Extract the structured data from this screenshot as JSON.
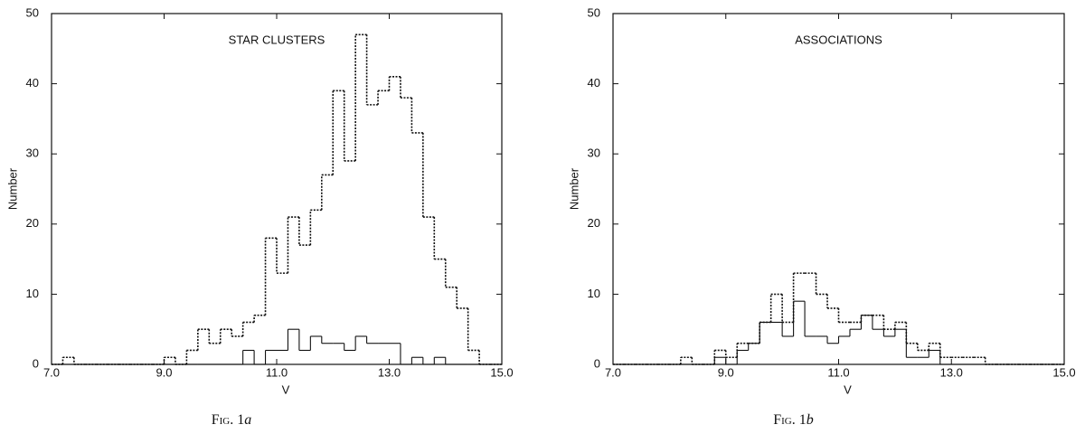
{
  "chart_data": [
    {
      "type": "histogram",
      "title": "STAR CLUSTERS",
      "xlabel": "V",
      "ylabel": "Number",
      "caption": "Fig. 1",
      "caption_panel": "a",
      "bins": [
        7.0,
        7.2,
        7.4,
        7.6,
        7.8,
        8.0,
        8.2,
        8.4,
        8.6,
        8.8,
        9.0,
        9.2,
        9.4,
        9.6,
        9.8,
        10.0,
        10.2,
        10.4,
        10.6,
        10.8,
        11.0,
        11.2,
        11.4,
        11.6,
        11.8,
        12.0,
        12.2,
        12.4,
        12.6,
        12.8,
        13.0,
        13.2,
        13.4,
        13.6,
        13.8,
        14.0,
        14.2,
        14.4,
        14.6,
        14.8,
        15.0
      ],
      "series": [
        {
          "style": "dotted",
          "color": "#111111",
          "values": [
            0,
            1,
            0,
            0,
            0,
            0,
            0,
            0,
            0,
            0,
            1,
            0,
            2,
            5,
            3,
            5,
            4,
            6,
            7,
            18,
            13,
            21,
            17,
            22,
            27,
            39,
            29,
            47,
            37,
            39,
            41,
            38,
            33,
            21,
            15,
            11,
            8,
            2,
            0,
            0
          ]
        },
        {
          "style": "solid",
          "color": "#111111",
          "values": [
            0,
            0,
            0,
            0,
            0,
            0,
            0,
            0,
            0,
            0,
            0,
            0,
            0,
            0,
            0,
            0,
            0,
            2,
            0,
            2,
            2,
            5,
            2,
            4,
            3,
            3,
            2,
            4,
            3,
            3,
            3,
            0,
            1,
            0,
            1,
            0,
            0,
            0,
            0,
            0
          ]
        }
      ],
      "xlim": [
        7.0,
        15.0
      ],
      "ylim": [
        0,
        50
      ],
      "xticks": [
        {
          "value": 7,
          "label": "7.0"
        },
        {
          "value": 9,
          "label": "9.0"
        },
        {
          "value": 11,
          "label": "11.0"
        },
        {
          "value": 13,
          "label": "13.0"
        },
        {
          "value": 15,
          "label": "15.0"
        }
      ],
      "yticks": [
        0,
        10,
        20,
        30,
        40,
        50
      ]
    },
    {
      "type": "histogram",
      "title": "ASSOCIATIONS",
      "xlabel": "V",
      "ylabel": "Number",
      "caption": "Fig. 1",
      "caption_panel": "b",
      "bins": [
        7.0,
        7.2,
        7.4,
        7.6,
        7.8,
        8.0,
        8.2,
        8.4,
        8.6,
        8.8,
        9.0,
        9.2,
        9.4,
        9.6,
        9.8,
        10.0,
        10.2,
        10.4,
        10.6,
        10.8,
        11.0,
        11.2,
        11.4,
        11.6,
        11.8,
        12.0,
        12.2,
        12.4,
        12.6,
        12.8,
        13.0,
        13.2,
        13.4,
        13.6,
        13.8,
        14.0,
        14.2,
        14.4,
        14.6,
        14.8,
        15.0
      ],
      "series": [
        {
          "style": "dotted",
          "color": "#111111",
          "values": [
            0,
            0,
            0,
            0,
            0,
            0,
            1,
            0,
            0,
            2,
            1,
            3,
            3,
            6,
            10,
            6,
            13,
            13,
            10,
            8,
            6,
            6,
            7,
            7,
            5,
            6,
            3,
            2,
            3,
            1,
            1,
            1,
            1,
            0,
            0,
            0,
            0,
            0,
            0,
            0
          ]
        },
        {
          "style": "solid",
          "color": "#111111",
          "values": [
            0,
            0,
            0,
            0,
            0,
            0,
            0,
            0,
            0,
            1,
            0,
            2,
            3,
            6,
            6,
            4,
            9,
            4,
            4,
            3,
            4,
            5,
            7,
            5,
            4,
            5,
            1,
            1,
            2,
            0,
            0,
            0,
            0,
            0,
            0,
            0,
            0,
            0,
            0,
            0
          ]
        }
      ],
      "xlim": [
        7.0,
        15.0
      ],
      "ylim": [
        0,
        50
      ],
      "xticks": [
        {
          "value": 7,
          "label": "7.0"
        },
        {
          "value": 9,
          "label": "9.0"
        },
        {
          "value": 11,
          "label": "11.0"
        },
        {
          "value": 13,
          "label": "13.0"
        },
        {
          "value": 15,
          "label": "15.0"
        }
      ],
      "yticks": [
        0,
        10,
        20,
        30,
        40,
        50
      ]
    }
  ]
}
